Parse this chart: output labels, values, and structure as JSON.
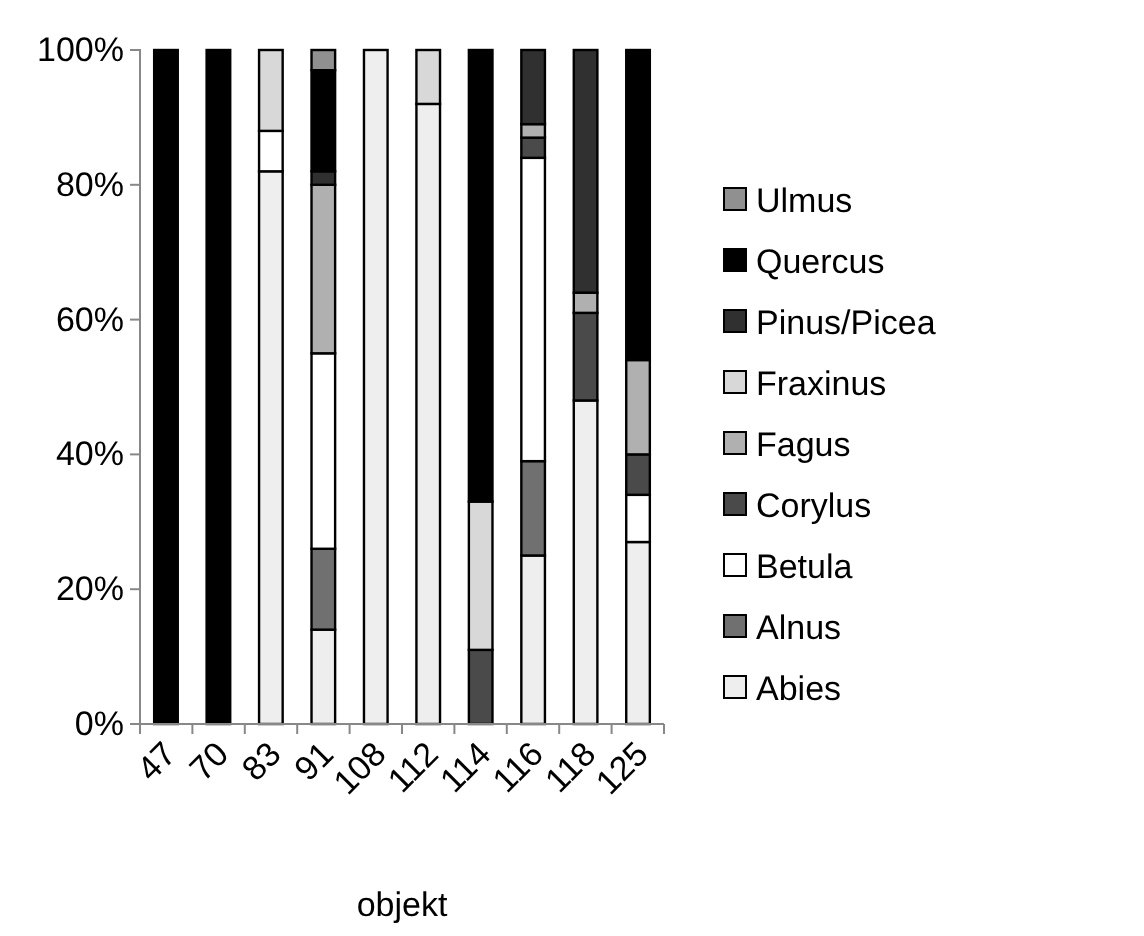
{
  "chart_data": {
    "type": "bar",
    "stacked": true,
    "xlabel": "objekt",
    "categories": [
      "47",
      "70",
      "83",
      "91",
      "108",
      "112",
      "114",
      "116",
      "118",
      "125"
    ],
    "ylim": [
      0,
      100
    ],
    "yticks": [
      {
        "value": 0,
        "label": "0%"
      },
      {
        "value": 20,
        "label": "20%"
      },
      {
        "value": 40,
        "label": "40%"
      },
      {
        "value": 60,
        "label": "60%"
      },
      {
        "value": 80,
        "label": "80%"
      },
      {
        "value": 100,
        "label": "100%"
      }
    ],
    "grid": false,
    "legend": "right",
    "series": [
      {
        "name": "Abies",
        "color": "#eeeeee",
        "values": [
          0,
          0,
          82,
          14,
          100,
          92,
          0,
          25,
          48,
          27
        ]
      },
      {
        "name": "Alnus",
        "color": "#707070",
        "values": [
          0,
          0,
          0,
          12,
          0,
          0,
          0,
          14,
          0,
          0
        ]
      },
      {
        "name": "Betula",
        "color": "#ffffff",
        "values": [
          0,
          0,
          6,
          29,
          0,
          0,
          0,
          45,
          0,
          7
        ]
      },
      {
        "name": "Corylus",
        "color": "#4a4a4a",
        "values": [
          0,
          0,
          0,
          0,
          0,
          0,
          11,
          3,
          13,
          6
        ]
      },
      {
        "name": "Fagus",
        "color": "#b0b0b0",
        "values": [
          0,
          0,
          0,
          25,
          0,
          0,
          0,
          2,
          3,
          14
        ]
      },
      {
        "name": "Fraxinus",
        "color": "#d8d8d8",
        "values": [
          0,
          0,
          12,
          0,
          0,
          8,
          22,
          0,
          0,
          0
        ]
      },
      {
        "name": "Pinus/Picea",
        "color": "#303030",
        "values": [
          0,
          0,
          0,
          2,
          0,
          0,
          0,
          11,
          36,
          0
        ]
      },
      {
        "name": "Quercus",
        "color": "#000000",
        "values": [
          100,
          100,
          0,
          15,
          0,
          0,
          67,
          0,
          0,
          46
        ]
      },
      {
        "name": "Ulmus",
        "color": "#909090",
        "values": [
          0,
          0,
          0,
          3,
          0,
          0,
          0,
          0,
          0,
          0
        ]
      }
    ]
  }
}
